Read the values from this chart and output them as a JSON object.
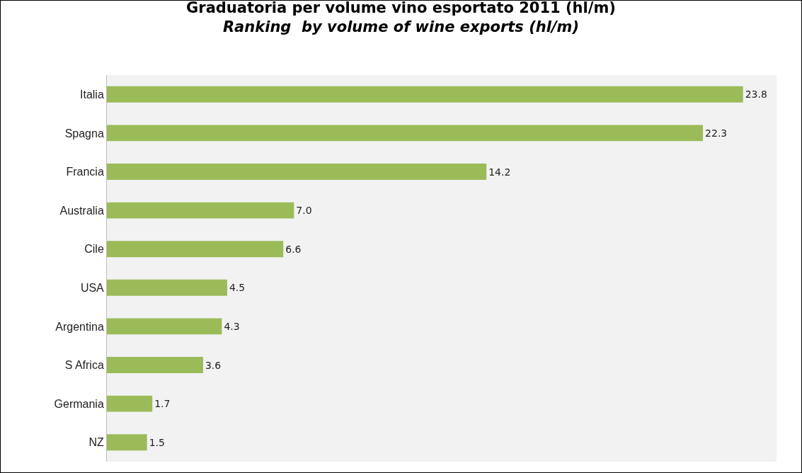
{
  "chart_data": {
    "type": "bar",
    "orientation": "horizontal",
    "title": "Graduatoria per volume vino esportato 2011 (hl/m)",
    "subtitle": "Ranking  by volume of wine exports (hl/m)",
    "categories": [
      "Italia",
      "Spagna",
      "Francia",
      "Australia",
      "Cile",
      "USA",
      "Argentina",
      "S Africa",
      "Germania",
      "NZ"
    ],
    "values": [
      23.8,
      22.3,
      14.2,
      7.0,
      6.6,
      4.5,
      4.3,
      3.6,
      1.7,
      1.5
    ],
    "value_labels": [
      "23.8",
      "22.3",
      "14.2",
      "7.0",
      "6.6",
      "4.5",
      "4.3",
      "3.6",
      "1.7",
      "1.5"
    ],
    "color": "#9bbb59",
    "grid": false
  }
}
